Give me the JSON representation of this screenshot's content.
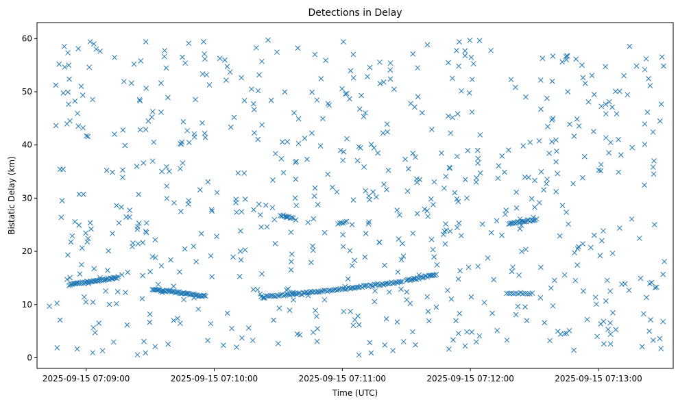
{
  "chart_data": {
    "type": "scatter",
    "title": "Detections in Delay",
    "xlabel": "Time (UTC)",
    "ylabel": "Bistatic Delay (km)",
    "marker": "x",
    "color": "#1f77b4",
    "grid": false,
    "legend": "none",
    "xlim": [
      "2025-09-15 07:08:37",
      "2025-09-15 07:13:35"
    ],
    "ylim": [
      -2,
      63
    ],
    "xticks": [
      "2025-09-15 07:09:00",
      "2025-09-15 07:10:00",
      "2025-09-15 07:11:00",
      "2025-09-15 07:12:00",
      "2025-09-15 07:13:00"
    ],
    "yticks": [
      0,
      10,
      20,
      30,
      40,
      50,
      60
    ],
    "x_start": "2025-09-15 07:08:42",
    "x_end": "2025-09-15 07:13:31",
    "y_range": [
      0.5,
      59.8
    ],
    "random_points": 700,
    "track_segments": [
      {
        "t0": "2025-09-15 07:08:52",
        "t1": "2025-09-15 07:09:15",
        "y0": 13.7,
        "y1": 15.1,
        "n": 45
      },
      {
        "t0": "2025-09-15 07:09:31",
        "t1": "2025-09-15 07:09:56",
        "y0": 12.9,
        "y1": 11.5,
        "n": 45
      },
      {
        "t0": "2025-09-15 07:10:22",
        "t1": "2025-09-15 07:10:59",
        "y0": 11.4,
        "y1": 12.8,
        "n": 50
      },
      {
        "t0": "2025-09-15 07:11:00",
        "t1": "2025-09-15 07:11:28",
        "y0": 12.9,
        "y1": 14.3,
        "n": 40
      },
      {
        "t0": "2025-09-15 07:11:30",
        "t1": "2025-09-15 07:11:44",
        "y0": 14.5,
        "y1": 15.6,
        "n": 25
      },
      {
        "t0": "2025-09-15 07:12:18",
        "t1": "2025-09-15 07:12:31",
        "y0": 25.2,
        "y1": 26.0,
        "n": 22
      },
      {
        "t0": "2025-09-15 07:12:17",
        "t1": "2025-09-15 07:12:29",
        "y0": 12.1,
        "y1": 12.1,
        "n": 12
      },
      {
        "t0": "2025-09-15 07:10:58",
        "t1": "2025-09-15 07:11:02",
        "y0": 25.0,
        "y1": 25.8,
        "n": 6
      },
      {
        "t0": "2025-09-15 07:10:31",
        "t1": "2025-09-15 07:10:37",
        "y0": 26.8,
        "y1": 26.2,
        "n": 10
      }
    ]
  }
}
